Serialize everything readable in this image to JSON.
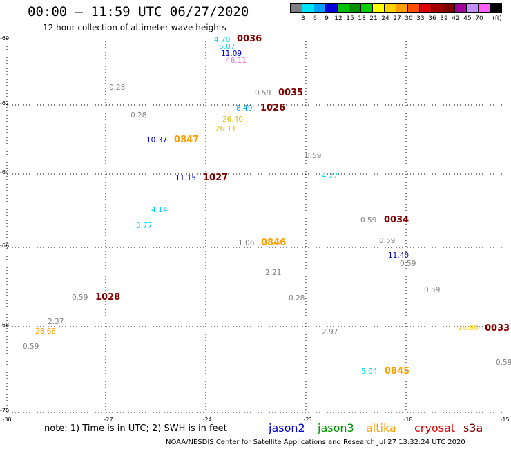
{
  "header": {
    "title": "00:00 — 11:59 UTC 06/27/2020",
    "subtitle": "12 hour collection of altimeter wave heights"
  },
  "color_scale": {
    "unit": "(ft)",
    "swatches": [
      "#808080",
      "#00e5ff",
      "#00a0ff",
      "#0000dd",
      "#00c000",
      "#009000",
      "#00d000",
      "#ffff00",
      "#ffd000",
      "#ffa000",
      "#ff5000",
      "#dd0000",
      "#a00000",
      "#800000",
      "#a000a0",
      "#c090ff",
      "#ff60ff",
      "#000000"
    ],
    "labels": [
      "3",
      "6",
      "9",
      "12",
      "15",
      "18",
      "21",
      "24",
      "27",
      "30",
      "33",
      "36",
      "39",
      "42",
      "45",
      "70"
    ]
  },
  "axes": {
    "lat_labels": [
      "-60",
      "-62",
      "-64",
      "-66",
      "-68",
      "-70"
    ],
    "lon_labels": [
      "-30",
      "-27",
      "-24",
      "-21",
      "-18",
      "-15"
    ]
  },
  "measurements": [
    {
      "text": "4.70",
      "color": "#00d8e8"
    },
    {
      "text": "5.07",
      "color": "#00d8e8"
    },
    {
      "text": "11.09",
      "color": "#0000cc"
    },
    {
      "text": "46.11",
      "color": "#e070e0"
    },
    {
      "text": "0.28",
      "color": "#808080"
    },
    {
      "text": "0.59",
      "color": "#808080"
    },
    {
      "text": "8.49",
      "color": "#00a0ff"
    },
    {
      "text": "0.28",
      "color": "#808080"
    },
    {
      "text": "26.40",
      "color": "#ddc000"
    },
    {
      "text": "26.11",
      "color": "#ddc000"
    },
    {
      "text": "10.37",
      "color": "#0000cc"
    },
    {
      "text": "0.59",
      "color": "#808080"
    },
    {
      "text": "11.15",
      "color": "#0000cc"
    },
    {
      "text": "4.27",
      "color": "#00d8e8"
    },
    {
      "text": "4.14",
      "color": "#00d8e8"
    },
    {
      "text": "0.59",
      "color": "#808080"
    },
    {
      "text": "3.77",
      "color": "#00d8e8"
    },
    {
      "text": "1.06",
      "color": "#808080"
    },
    {
      "text": "0.59",
      "color": "#808080"
    },
    {
      "text": "11.40",
      "color": "#0000cc"
    },
    {
      "text": "0.59",
      "color": "#808080"
    },
    {
      "text": "2.21",
      "color": "#808080"
    },
    {
      "text": "0.59",
      "color": "#808080"
    },
    {
      "text": "0.59",
      "color": "#808080"
    },
    {
      "text": "0.28",
      "color": "#808080"
    },
    {
      "text": "2.37",
      "color": "#808080"
    },
    {
      "text": "28.68",
      "color": "#ffa000"
    },
    {
      "text": "26.80",
      "color": "#ffd000"
    },
    {
      "text": "2.97",
      "color": "#808080"
    },
    {
      "text": "0.59",
      "color": "#808080"
    },
    {
      "text": "0.59",
      "color": "#808080"
    },
    {
      "text": "5.04",
      "color": "#00d8e8"
    }
  ],
  "pass_times": [
    {
      "text": "0036",
      "color": "#800000"
    },
    {
      "text": "0035",
      "color": "#800000"
    },
    {
      "text": "1026",
      "color": "#800000"
    },
    {
      "text": "0847",
      "color": "#ffa000"
    },
    {
      "text": "1027",
      "color": "#800000"
    },
    {
      "text": "0034",
      "color": "#800000"
    },
    {
      "text": "0846",
      "color": "#ffa000"
    },
    {
      "text": "1028",
      "color": "#800000"
    },
    {
      "text": "0033",
      "color": "#800000"
    },
    {
      "text": "0845",
      "color": "#ffa000"
    }
  ],
  "note": "note: 1) Time is in UTC; 2) SWH is in feet",
  "legend": [
    {
      "name": "jason2",
      "color": "#0000cc"
    },
    {
      "name": "jason3",
      "color": "#009000"
    },
    {
      "name": "altika",
      "color": "#ffa000"
    },
    {
      "name": "cryosat",
      "color": "#dd0000"
    },
    {
      "name": "s3a",
      "color": "#800000"
    }
  ],
  "footer": "NOAA/NESDIS Center for Satellite Applications and Research   Jul 27 13:32:24 UTC 2020"
}
